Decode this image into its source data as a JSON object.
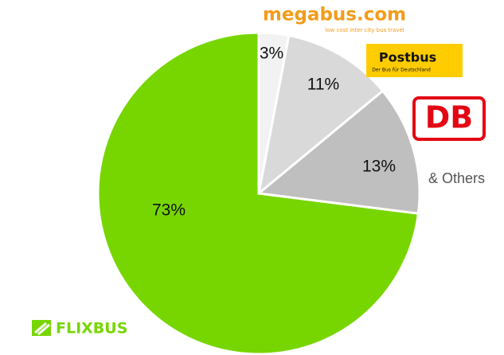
{
  "chart_data": {
    "type": "pie",
    "categories": [
      "megabus.com",
      "Postbus",
      "DB",
      "FLIXBUS"
    ],
    "values": [
      3,
      11,
      13,
      73
    ],
    "value_labels": [
      "3%",
      "11%",
      "13%",
      "73%"
    ],
    "colors": [
      "#f2f2f2",
      "#d9d9d9",
      "#bfbfbf",
      "#77d600"
    ],
    "annotations": [
      "low cost inter city bus travel",
      "Der Bus für Deutschland",
      "& Others"
    ]
  }
}
